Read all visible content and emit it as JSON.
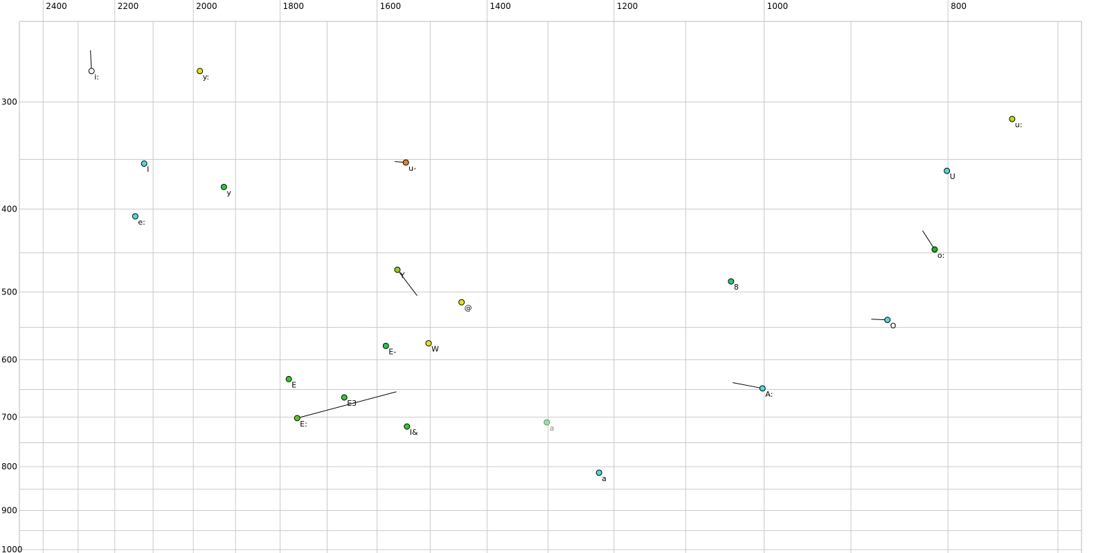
{
  "chart_data": {
    "type": "scatter",
    "title": "",
    "xlabel": "",
    "ylabel": "",
    "legend": false,
    "grid": true,
    "x_axis": {
      "scale": "log",
      "reversed": true,
      "left_value": 2529,
      "right_value": 670,
      "tick_labels": [
        2400,
        2200,
        2000,
        1800,
        1600,
        1400,
        1200,
        1000,
        800
      ],
      "gridlines": [
        2400,
        2300,
        2200,
        2100,
        2000,
        1900,
        1800,
        1700,
        1600,
        1500,
        1400,
        1300,
        1200,
        1100,
        1000,
        900,
        800,
        700
      ]
    },
    "y_axis": {
      "scale": "log",
      "inverted": true,
      "top_value": 228,
      "bottom_value": 1009,
      "tick_labels": [
        300,
        400,
        500,
        600,
        700,
        800,
        900,
        1000
      ],
      "gridlines": [
        300,
        350,
        400,
        450,
        500,
        550,
        600,
        650,
        700,
        750,
        800,
        850,
        900,
        950,
        1000
      ]
    },
    "points": [
      {
        "label": "i:",
        "f2": 2263,
        "f1": 276,
        "color": "#f6f6ff",
        "tail": {
          "f2": 2266,
          "f1": 261
        }
      },
      {
        "label": "y:",
        "f2": 1984,
        "f1": 276,
        "color": "#e3e300"
      },
      {
        "label": "u:",
        "f2": 740,
        "f1": 314,
        "color": "#b5dd00"
      },
      {
        "label": "I",
        "f2": 2123,
        "f1": 354,
        "color": "#4fd9d9"
      },
      {
        "label": "u-",
        "f2": 1545,
        "f1": 353,
        "color": "#f08020",
        "tail": {
          "f2": 1566,
          "f1": 352
        }
      },
      {
        "label": "U",
        "f2": 801,
        "f1": 361,
        "color": "#4fd9d9"
      },
      {
        "label": "y",
        "f2": 1927,
        "f1": 377,
        "color": "#2ecc2e"
      },
      {
        "label": "e:",
        "f2": 2146,
        "f1": 408,
        "color": "#4fd9d9"
      },
      {
        "label": "o:",
        "f2": 813,
        "f1": 446,
        "color": "#16b816",
        "tail": {
          "f2": 825,
          "f1": 424
        }
      },
      {
        "label": "Y",
        "f2": 1561,
        "f1": 471,
        "color": "#9ccf00",
        "tail": {
          "f2": 1524,
          "f1": 505
        }
      },
      {
        "label": "8",
        "f2": 1041,
        "f1": 486,
        "color": "#22c96a"
      },
      {
        "label": "@",
        "f2": 1444,
        "f1": 514,
        "color": "#e3e300"
      },
      {
        "label": "O",
        "f2": 861,
        "f1": 539,
        "color": "#4fd9d9",
        "tail": {
          "f2": 878,
          "f1": 538
        }
      },
      {
        "label": "E-",
        "f2": 1583,
        "f1": 578,
        "color": "#22cc44"
      },
      {
        "label": "W",
        "f2": 1503,
        "f1": 574,
        "color": "#e6e600"
      },
      {
        "label": "E",
        "f2": 1781,
        "f1": 632,
        "color": "#2ecc2e"
      },
      {
        "label": "A:",
        "f2": 1002,
        "f1": 648,
        "color": "#4fd9d9",
        "tail": {
          "f2": 1039,
          "f1": 638
        }
      },
      {
        "label": "E3",
        "f2": 1665,
        "f1": 664,
        "color": "#2ecc2e"
      },
      {
        "label": "E:",
        "f2": 1763,
        "f1": 702,
        "color": "#55cc11",
        "tail": {
          "f2": 1563,
          "f1": 654
        }
      },
      {
        "label": "I&",
        "f2": 1543,
        "f1": 718,
        "color": "#2ecc2e"
      },
      {
        "label": "a",
        "f2": 1302,
        "f1": 710,
        "color": "#90e69e",
        "muted": true
      },
      {
        "label": "a",
        "f2": 1222,
        "f1": 813,
        "color": "#4fd9d9"
      }
    ]
  },
  "style": {
    "background": "#ffffff",
    "grid_color": "#c9c9c9",
    "frame_color": "#b8b8b8",
    "tick_label_color": "#000000",
    "point_outline": "#000000",
    "muted_outline": "#7a7a7a",
    "trail_color": "#000000",
    "point_label_color": "#000000",
    "muted_label_color": "#8c8c8c"
  }
}
